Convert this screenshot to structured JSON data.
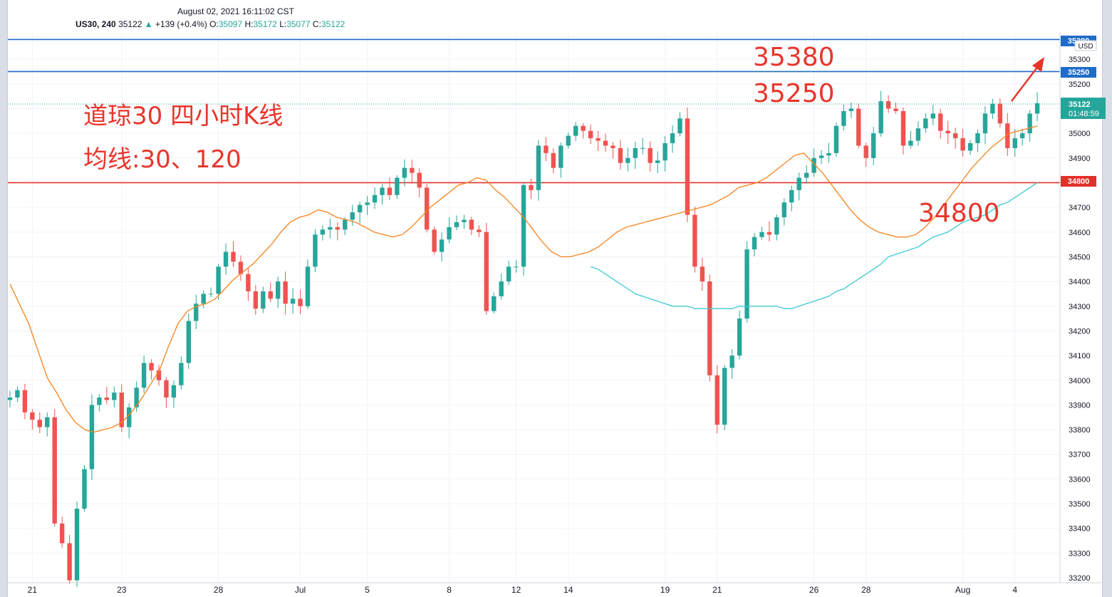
{
  "header": {
    "datetime": "August 02, 2021 16:11:02 CST",
    "symbol": "US30, 240",
    "last": "35122",
    "change_arrow": "▲",
    "change": "+139 (+0.4%)",
    "o_label": "O:",
    "o": "35097",
    "h_label": "H:",
    "h": "35172",
    "l_label": "L:",
    "l": "35077",
    "c_label": "C:",
    "c": "35122"
  },
  "annotations": {
    "title": "道琼30 四小时K线",
    "subtitle": "均线:30、120",
    "label_35380": "35380",
    "label_35250": "35250",
    "label_34800": "34800"
  },
  "price_scale": {
    "currency": "USD",
    "current_price": "35122",
    "countdown": "01:48:59",
    "label_top": "35380",
    "label_resistance": "35250",
    "label_support": "34800"
  },
  "colors": {
    "up": "#26a69a",
    "down": "#ef5350",
    "ma30": "#f7821b",
    "ma120": "#3fc9d2",
    "resistance": "#1e6cc8",
    "support": "#e0312b",
    "annotation": "#e8352b"
  },
  "chart_data": {
    "type": "candlestick",
    "ylim": [
      33180,
      35410
    ],
    "y_ticks": [
      33200,
      33300,
      33400,
      33500,
      33600,
      33700,
      33800,
      33900,
      34000,
      34100,
      34200,
      34300,
      34400,
      34500,
      34600,
      34700,
      34800,
      34900,
      35000,
      35100,
      35200,
      35300
    ],
    "x_ticks": [
      {
        "label": "21",
        "index": 3
      },
      {
        "label": "23",
        "index": 15
      },
      {
        "label": "28",
        "index": 28
      },
      {
        "label": "Jul",
        "index": 39
      },
      {
        "label": "5",
        "index": 48
      },
      {
        "label": "8",
        "index": 59
      },
      {
        "label": "12",
        "index": 68
      },
      {
        "label": "14",
        "index": 75
      },
      {
        "label": "19",
        "index": 88
      },
      {
        "label": "21",
        "index": 95
      },
      {
        "label": "26",
        "index": 108
      },
      {
        "label": "28",
        "index": 115
      },
      {
        "label": "Aug",
        "index": 128
      },
      {
        "label": "4",
        "index": 135
      }
    ],
    "x_count": 139,
    "horizontal_lines": [
      {
        "name": "35380",
        "value": 35380
      },
      {
        "name": "35250",
        "value": 35250
      },
      {
        "name": "34800",
        "value": 34800
      }
    ],
    "closes": [
      33930,
      33960,
      33870,
      33840,
      33810,
      33850,
      33420,
      33340,
      33190,
      33480,
      33640,
      33900,
      33930,
      33920,
      33950,
      33810,
      33890,
      33970,
      34070,
      34040,
      34000,
      33930,
      33980,
      34070,
      34240,
      34310,
      34350,
      34350,
      34460,
      34520,
      34480,
      34430,
      34360,
      34290,
      34360,
      34330,
      34400,
      34310,
      34330,
      34300,
      34460,
      34590,
      34610,
      34620,
      34610,
      34650,
      34680,
      34710,
      34720,
      34750,
      34780,
      34750,
      34820,
      34860,
      34840,
      34780,
      34610,
      34520,
      34570,
      34620,
      34640,
      34650,
      34610,
      34600,
      34280,
      34340,
      34400,
      34460,
      34460,
      34790,
      34770,
      34950,
      34920,
      34860,
      34950,
      34990,
      35030,
      35010,
      34980,
      34970,
      34950,
      34940,
      34880,
      34900,
      34940,
      34940,
      34880,
      34890,
      34960,
      35000,
      35060,
      34670,
      34460,
      34400,
      34020,
      33820,
      34050,
      34100,
      34250,
      34530,
      34580,
      34600,
      34590,
      34660,
      34720,
      34770,
      34820,
      34840,
      34900,
      34910,
      34920,
      35030,
      35090,
      35100,
      34950,
      34900,
      35000,
      35130,
      35100,
      35090,
      34950,
      34970,
      35020,
      35060,
      35080,
      35010,
      35000,
      34980,
      34930,
      34960,
      35000,
      35080,
      35120,
      35040,
      34940,
      34980,
      35000,
      35080,
      35122
    ],
    "series": [
      {
        "name": "30",
        "values": [
          34390,
          34310,
          34230,
          34120,
          34010,
          33950,
          33880,
          33830,
          33800,
          33790,
          33800,
          33810,
          33830,
          33870,
          33920,
          33980,
          34040,
          34140,
          34230,
          34280,
          34300,
          34310,
          34330,
          34370,
          34410,
          34440,
          34470,
          34510,
          34550,
          34600,
          34640,
          34660,
          34670,
          34690,
          34680,
          34660,
          34650,
          34640,
          34620,
          34600,
          34590,
          34580,
          34590,
          34620,
          34660,
          34700,
          34730,
          34760,
          34790,
          34800,
          34820,
          34810,
          34770,
          34740,
          34700,
          34660,
          34610,
          34560,
          34520,
          34500,
          34500,
          34510,
          34520,
          34540,
          34570,
          34600,
          34620,
          34630,
          34640,
          34650,
          34660,
          34670,
          34680,
          34690,
          34700,
          34710,
          34730,
          34750,
          34780,
          34790,
          34800,
          34820,
          34850,
          34880,
          34910,
          34920,
          34880,
          34840,
          34790,
          34740,
          34690,
          34650,
          34620,
          34600,
          34590,
          34580,
          34580,
          34590,
          34620,
          34660,
          34710,
          34760,
          34810,
          34860,
          34900,
          34940,
          34970,
          35000,
          35010,
          35020,
          35030
        ]
      },
      {
        "name": "120",
        "values": [
          34460,
          34450,
          34430,
          34410,
          34390,
          34370,
          34350,
          34340,
          34330,
          34320,
          34310,
          34300,
          34300,
          34300,
          34290,
          34290,
          34290,
          34290,
          34290,
          34290,
          34300,
          34300,
          34300,
          34300,
          34300,
          34300,
          34290,
          34290,
          34300,
          34310,
          34320,
          34330,
          34340,
          34360,
          34370,
          34390,
          34410,
          34430,
          34450,
          34470,
          34500,
          34510,
          34520,
          34530,
          34540,
          34560,
          34580,
          34590,
          34600,
          34620,
          34640,
          34650,
          34660,
          34670,
          34690,
          34710,
          34720,
          34740,
          34760,
          34780,
          34800
        ]
      }
    ],
    "series_start_index": [
      0,
      78
    ]
  }
}
